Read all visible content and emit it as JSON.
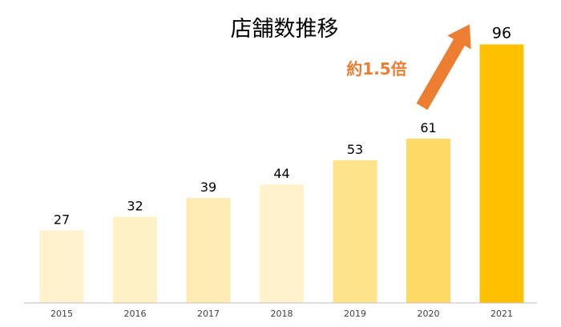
{
  "chart_data": {
    "type": "bar",
    "title": "店舗数推移",
    "categories": [
      "2015",
      "2016",
      "2017",
      "2018",
      "2019",
      "2020",
      "2021"
    ],
    "values": [
      27,
      32,
      39,
      44,
      53,
      61,
      96
    ],
    "bar_colors": [
      "#FFF2CC",
      "#FFF0C6",
      "#FFEBB4",
      "#FFF2CC",
      "#FFE38B",
      "#FFD966",
      "#FFC000"
    ],
    "xlabel": "",
    "ylabel": "",
    "ylim": [
      0,
      100
    ],
    "grid": false,
    "annotation": {
      "text": "約1.5倍",
      "color": "#ED7D31",
      "arrow_from_category": "2020",
      "arrow_to_category": "2021"
    }
  }
}
